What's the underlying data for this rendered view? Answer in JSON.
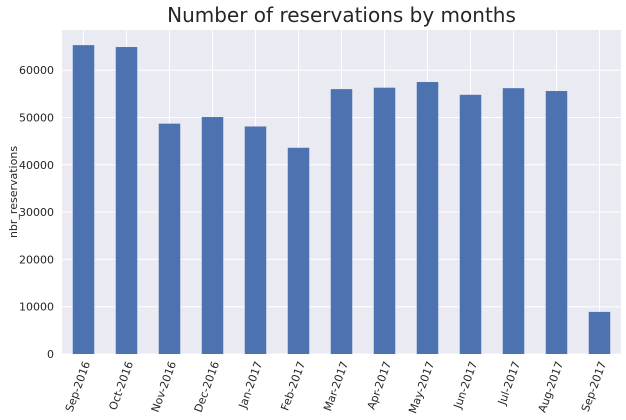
{
  "chart_data": {
    "type": "bar",
    "title": "Number of reservations by months",
    "xlabel": "",
    "ylabel": "nbr_reservations",
    "categories": [
      "Sep-2016",
      "Oct-2016",
      "Nov-2016",
      "Dec-2016",
      "Jan-2017",
      "Feb-2017",
      "Mar-2017",
      "Apr-2017",
      "May-2017",
      "Jun-2017",
      "Jul-2017",
      "Aug-2017",
      "Sep-2017"
    ],
    "values": [
      65300,
      64900,
      48700,
      50100,
      48100,
      43600,
      56000,
      56300,
      57500,
      54800,
      56200,
      55600,
      8900
    ],
    "ylim": [
      0,
      68500
    ],
    "yticks": [
      0,
      10000,
      20000,
      30000,
      40000,
      50000,
      60000
    ],
    "ytick_labels": [
      "0",
      "10000",
      "20000",
      "30000",
      "40000",
      "50000",
      "60000"
    ],
    "grid": true,
    "colors": {
      "bar": "#4c72b0",
      "plot_bg": "#eaeaf2",
      "grid": "#ffffff"
    }
  }
}
